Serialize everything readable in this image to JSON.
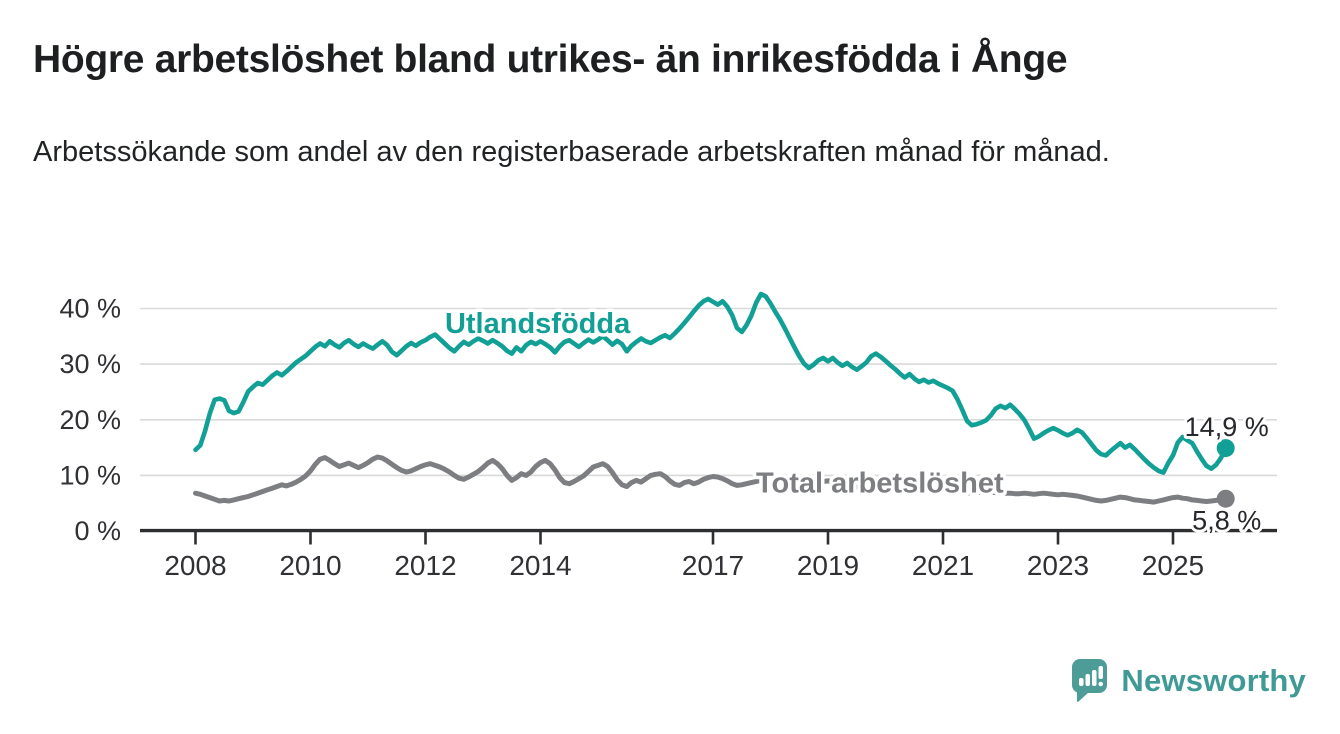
{
  "header": {
    "title": "Högre arbetslöshet bland utrikes- än inrikesfödda i Ånge",
    "subtitle": "Arbetssökande som andel av den registerbaserade arbetskraften månad för månad."
  },
  "footer": {
    "logo_text": "Newsworthy",
    "logo_color": "#4d9c98"
  },
  "colors": {
    "accent_teal": "#12a096",
    "line_gray": "#7d7e81",
    "grid": "#d9d9d9",
    "axis": "#2d2e30",
    "value_label": "#26282b"
  },
  "chart_data": {
    "type": "line",
    "unit": "%",
    "x_start_year": 2008,
    "points_per_year": 12,
    "x_ticks": [
      2008,
      2010,
      2012,
      2014,
      2017,
      2019,
      2021,
      2023,
      2025
    ],
    "y_ticks": [
      0,
      10,
      20,
      30,
      40
    ],
    "y_tick_suffix": " %",
    "ylim": [
      0,
      44
    ],
    "xlim": [
      2007.0,
      2026.3
    ],
    "grid": true,
    "legend_position": "inline-labels",
    "series": [
      {
        "name": "Utlandsfödda",
        "color": "#12a096",
        "stroke_width": 4.6,
        "end_label": "14,9 %",
        "end_value": 14.9,
        "end_label_side": "above",
        "label_pos": {
          "year": 2013.95,
          "value": 37.2
        },
        "values": [
          14.6,
          15.4,
          18.0,
          21.2,
          23.6,
          23.8,
          23.5,
          21.6,
          21.2,
          21.5,
          23.2,
          25.1,
          25.9,
          26.6,
          26.3,
          27.1,
          27.9,
          28.5,
          28.0,
          28.7,
          29.5,
          30.3,
          30.9,
          31.5,
          32.3,
          33.1,
          33.7,
          33.2,
          34.1,
          33.5,
          33.0,
          33.8,
          34.3,
          33.6,
          33.1,
          33.7,
          33.2,
          32.8,
          33.5,
          34.1,
          33.4,
          32.2,
          31.6,
          32.4,
          33.2,
          33.8,
          33.3,
          33.9,
          34.3,
          34.9,
          35.3,
          34.5,
          33.7,
          32.9,
          32.3,
          33.2,
          34.0,
          33.5,
          34.1,
          34.6,
          34.2,
          33.7,
          34.3,
          33.8,
          33.2,
          32.4,
          31.9,
          33.0,
          32.3,
          33.4,
          34.0,
          33.6,
          34.1,
          33.6,
          33.0,
          32.1,
          33.2,
          34.0,
          34.3,
          33.7,
          33.1,
          33.8,
          34.4,
          33.9,
          34.4,
          35.0,
          34.3,
          33.5,
          34.2,
          33.6,
          32.3,
          33.3,
          34.0,
          34.6,
          34.1,
          33.8,
          34.3,
          34.8,
          35.2,
          34.7,
          35.5,
          36.4,
          37.4,
          38.4,
          39.5,
          40.5,
          41.3,
          41.7,
          41.2,
          40.7,
          41.3,
          40.3,
          38.8,
          36.5,
          35.8,
          37.0,
          38.7,
          41.0,
          42.6,
          42.2,
          40.9,
          39.4,
          38.0,
          36.4,
          34.7,
          33.0,
          31.4,
          30.1,
          29.3,
          29.9,
          30.7,
          31.1,
          30.5,
          31.1,
          30.3,
          29.7,
          30.2,
          29.5,
          29.0,
          29.6,
          30.3,
          31.4,
          31.9,
          31.3,
          30.6,
          29.8,
          29.1,
          28.3,
          27.6,
          28.2,
          27.4,
          26.8,
          27.2,
          26.7,
          27.0,
          26.5,
          26.1,
          25.7,
          25.2,
          23.7,
          21.8,
          19.8,
          19.0,
          19.2,
          19.5,
          19.9,
          20.8,
          22.0,
          22.5,
          22.1,
          22.7,
          21.9,
          21.0,
          19.9,
          18.3,
          16.6,
          17.0,
          17.6,
          18.1,
          18.5,
          18.1,
          17.6,
          17.2,
          17.6,
          18.2,
          17.7,
          16.7,
          15.6,
          14.5,
          13.8,
          13.6,
          14.4,
          15.1,
          15.8,
          15.0,
          15.5,
          14.7,
          13.8,
          12.9,
          12.1,
          11.4,
          10.8,
          10.5,
          12.2,
          13.6,
          15.9,
          16.9,
          16.3,
          15.8,
          14.3,
          12.9,
          11.7,
          11.2,
          11.9,
          13.1,
          14.9
        ]
      },
      {
        "name": "Total arbetslöshet",
        "color": "#7d7e81",
        "stroke_width": 5.0,
        "end_label": "5,8 %",
        "end_value": 5.8,
        "end_label_side": "below",
        "label_pos": {
          "year": 2019.9,
          "value": 8.5
        },
        "values": [
          6.8,
          6.6,
          6.3,
          6.0,
          5.7,
          5.4,
          5.5,
          5.4,
          5.6,
          5.8,
          6.0,
          6.2,
          6.5,
          6.8,
          7.1,
          7.4,
          7.7,
          8.0,
          8.3,
          8.1,
          8.4,
          8.8,
          9.3,
          9.9,
          10.8,
          12.0,
          12.9,
          13.2,
          12.7,
          12.1,
          11.6,
          11.9,
          12.2,
          11.8,
          11.4,
          11.8,
          12.3,
          12.9,
          13.3,
          13.1,
          12.6,
          12.0,
          11.4,
          10.9,
          10.6,
          10.8,
          11.2,
          11.6,
          11.9,
          12.1,
          11.8,
          11.5,
          11.1,
          10.6,
          10.0,
          9.5,
          9.3,
          9.7,
          10.2,
          10.7,
          11.4,
          12.2,
          12.7,
          12.1,
          11.2,
          10.0,
          9.1,
          9.6,
          10.3,
          10.0,
          10.6,
          11.6,
          12.3,
          12.7,
          12.1,
          11.0,
          9.6,
          8.7,
          8.5,
          8.9,
          9.4,
          9.9,
          10.7,
          11.5,
          11.8,
          12.1,
          11.6,
          10.5,
          9.2,
          8.3,
          8.0,
          8.7,
          9.1,
          8.8,
          9.4,
          10.0,
          10.2,
          10.3,
          9.8,
          9.0,
          8.4,
          8.2,
          8.7,
          8.9,
          8.5,
          8.8,
          9.3,
          9.6,
          9.8,
          9.7,
          9.4,
          9.0,
          8.5,
          8.2,
          8.3,
          8.5,
          8.7,
          8.9,
          9.1,
          9.3,
          9.5,
          9.4,
          9.1,
          8.8,
          8.5,
          8.2,
          8.0,
          8.1,
          8.3,
          8.5,
          8.7,
          8.9,
          9.0,
          8.9,
          8.7,
          8.5,
          8.3,
          8.1,
          7.9,
          8.0,
          8.2,
          8.4,
          8.5,
          8.6,
          8.7,
          8.6,
          8.4,
          8.2,
          8.0,
          7.8,
          7.6,
          7.7,
          7.8,
          7.9,
          7.8,
          7.7,
          7.6,
          7.5,
          7.3,
          7.1,
          7.0,
          6.9,
          6.8,
          6.9,
          7.0,
          7.1,
          7.0,
          6.9,
          6.9,
          6.8,
          6.8,
          6.7,
          6.7,
          6.8,
          6.7,
          6.6,
          6.7,
          6.8,
          6.7,
          6.6,
          6.5,
          6.6,
          6.5,
          6.4,
          6.3,
          6.1,
          5.9,
          5.7,
          5.5,
          5.4,
          5.5,
          5.7,
          5.9,
          6.1,
          6.0,
          5.8,
          5.6,
          5.5,
          5.4,
          5.3,
          5.2,
          5.4,
          5.6,
          5.8,
          6.0,
          6.1,
          5.9,
          5.8,
          5.6,
          5.5,
          5.4,
          5.3,
          5.4,
          5.5,
          5.6,
          5.8
        ]
      }
    ]
  }
}
